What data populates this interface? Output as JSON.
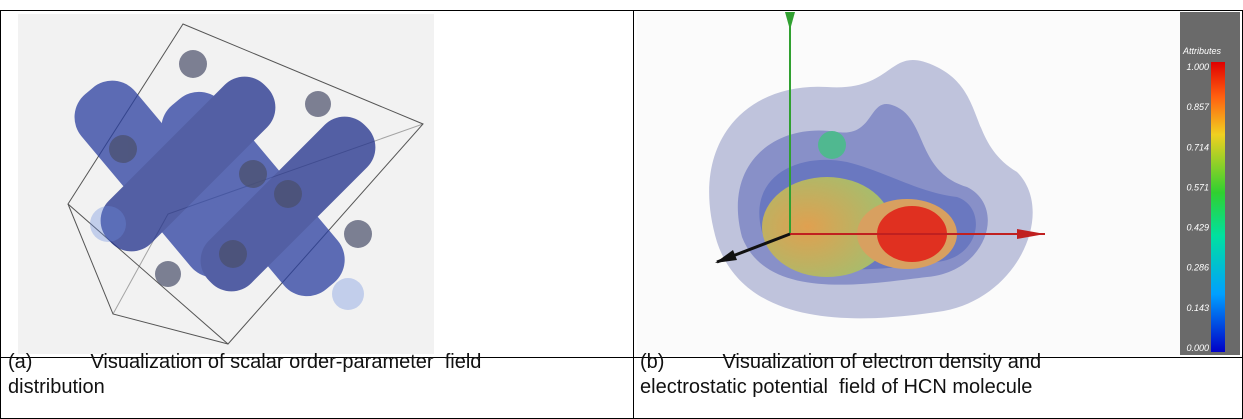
{
  "figures": [
    {
      "caption": {
        "label": "(a)",
        "line1": "Visualization of scalar order-parameter  field",
        "line2": "distribution"
      }
    },
    {
      "caption": {
        "label": "(b)",
        "line1": "Visualization of electron density and",
        "line2": "electrostatic potential  field of HCN molecule"
      },
      "colorbar": {
        "title": "Attributes",
        "ticks": [
          "1.000",
          "0.857",
          "0.714",
          "0.571",
          "0.429",
          "0.286",
          "0.143",
          "0.000"
        ]
      }
    }
  ]
}
